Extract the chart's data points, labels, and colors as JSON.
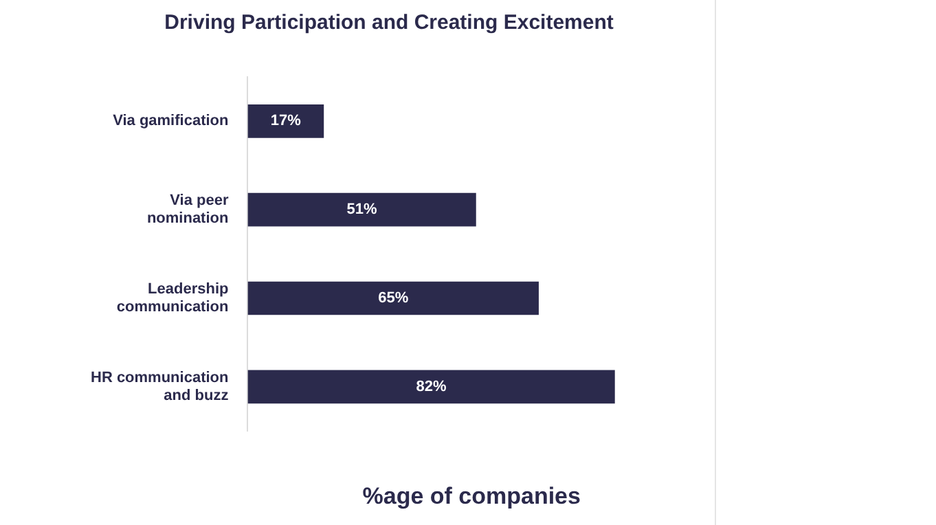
{
  "chart_data": {
    "type": "bar",
    "orientation": "horizontal",
    "title": "Driving Participation and Creating Excitement",
    "xlabel": "%age of companies",
    "categories": [
      "Via gamification",
      "Via peer nomination",
      "Leadership communication",
      "HR communication and buzz"
    ],
    "values": [
      17,
      51,
      65,
      82
    ],
    "value_labels": [
      "17%",
      "51%",
      "65%",
      "82%"
    ],
    "color": "#2b2a4c",
    "tick_labels": "y"
  }
}
